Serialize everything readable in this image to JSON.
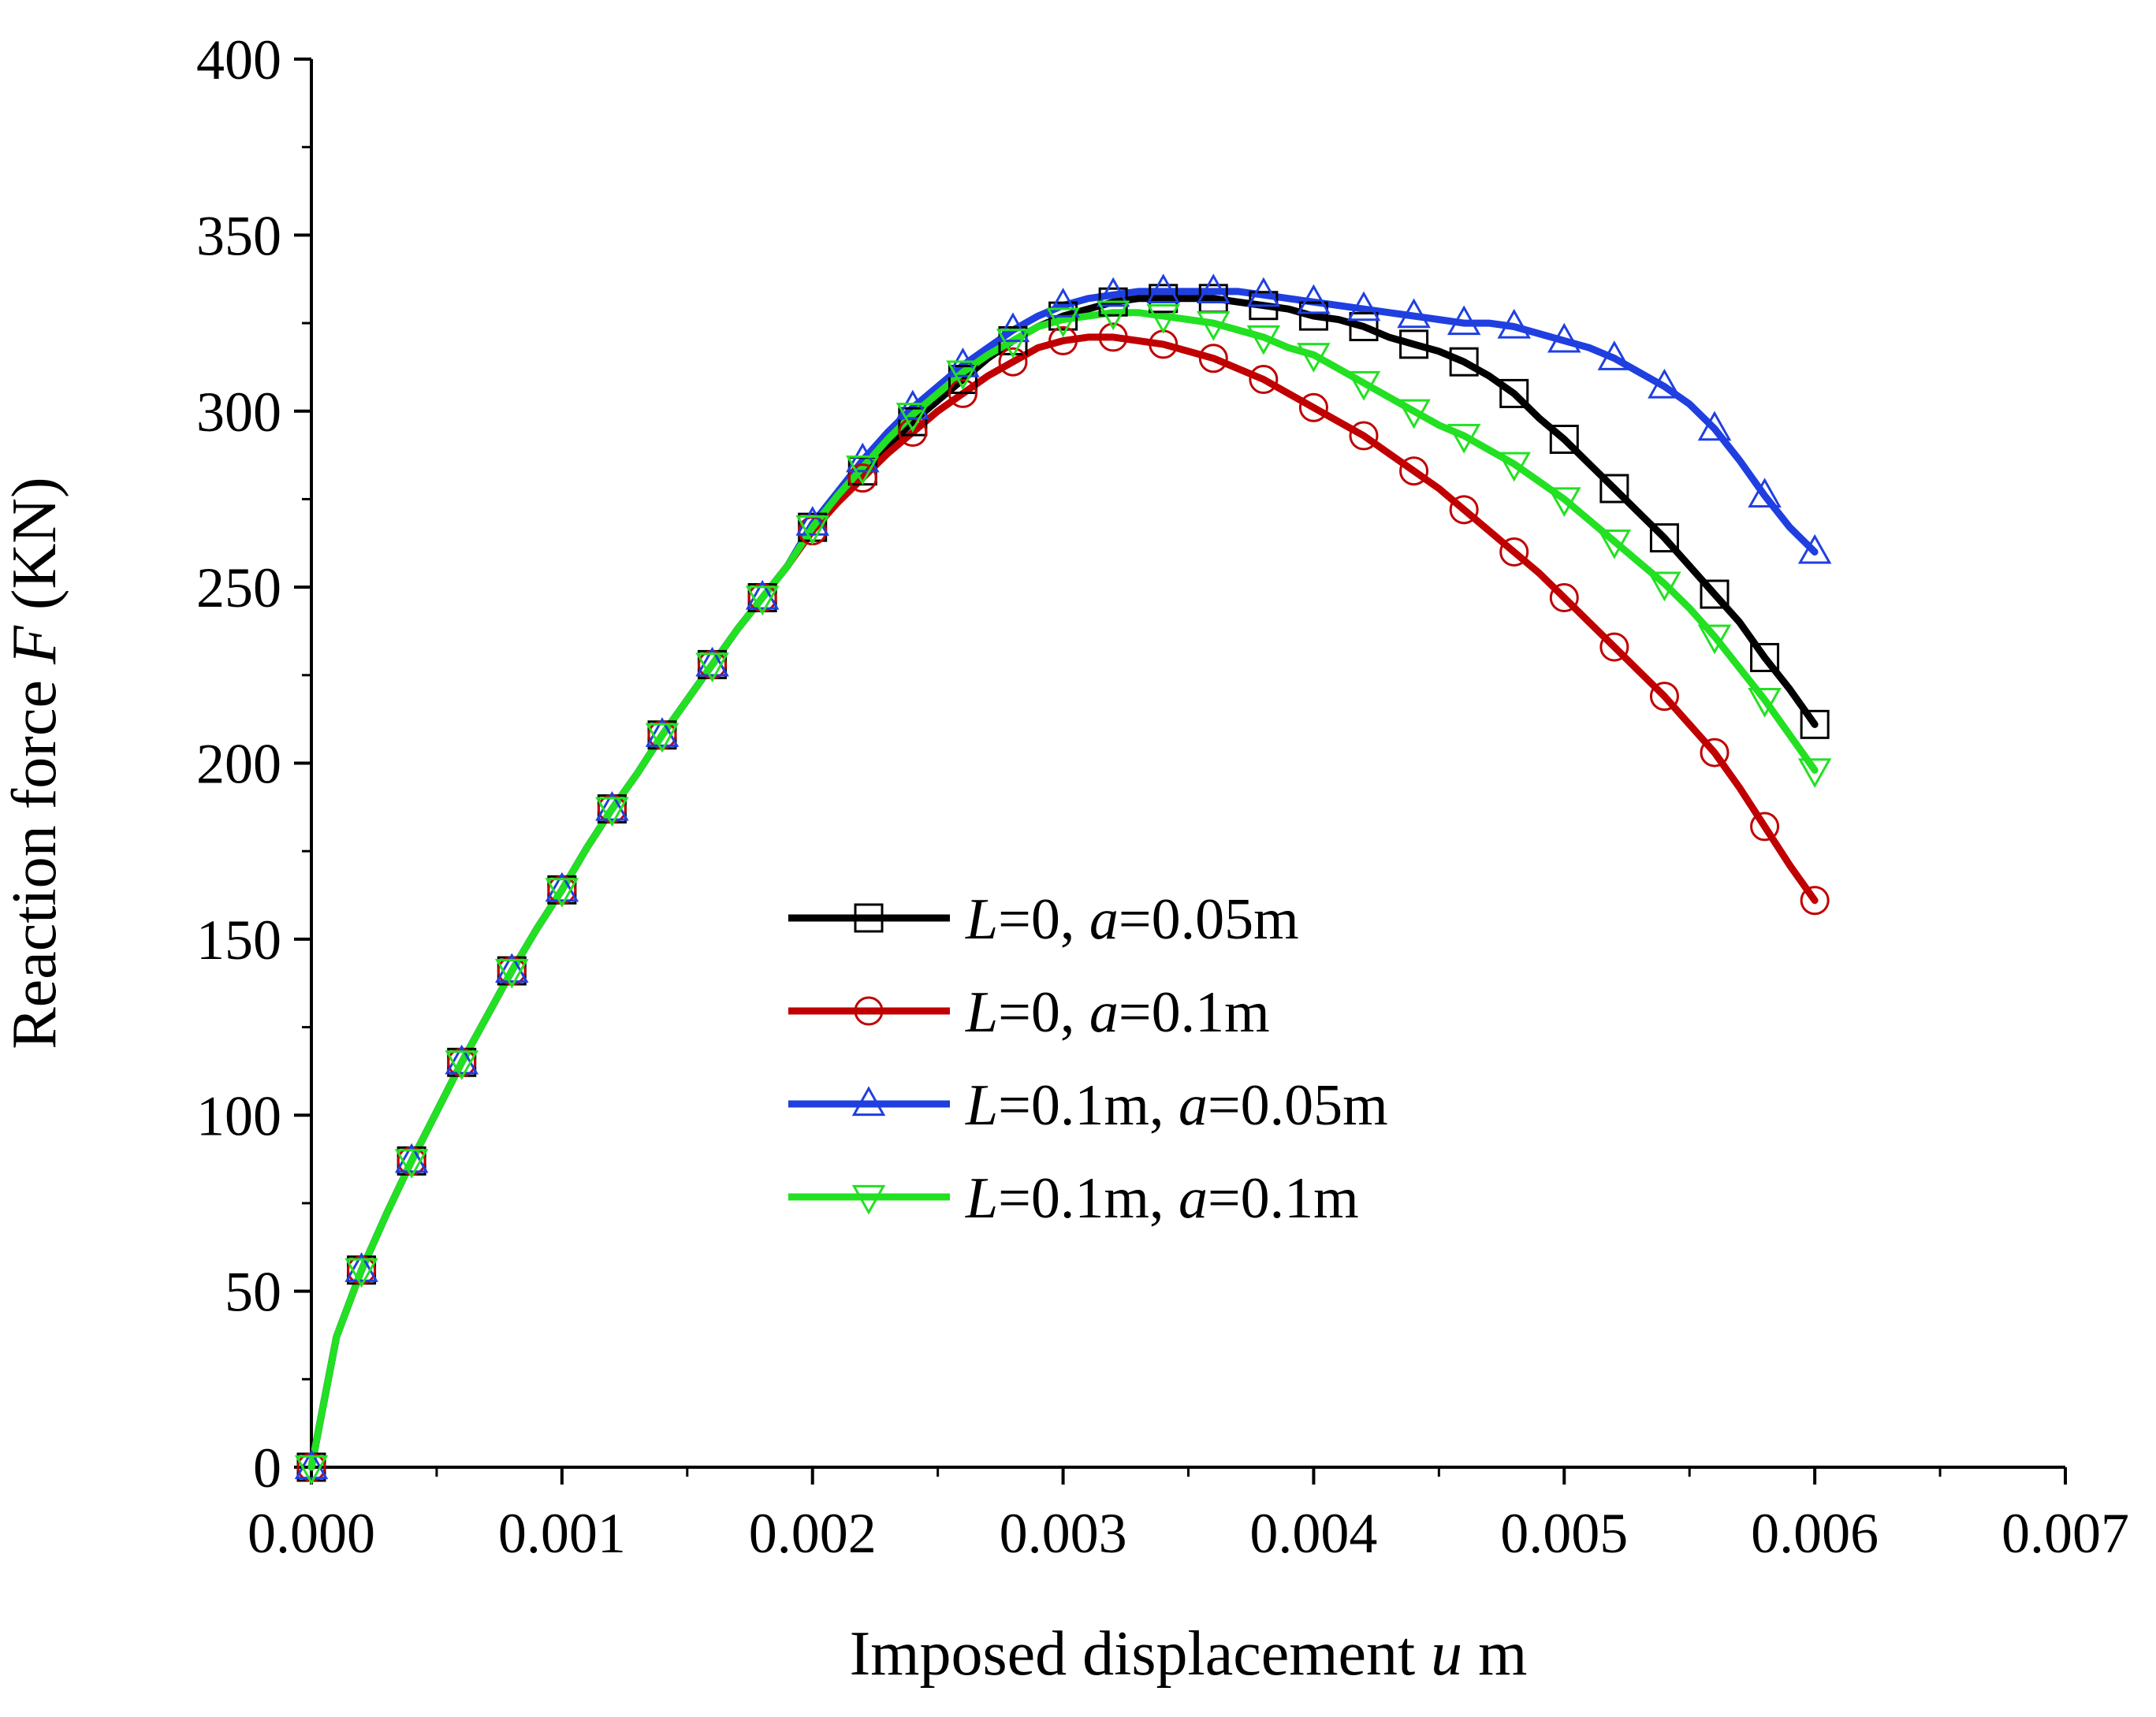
{
  "chart_data": {
    "type": "line",
    "title": "",
    "xlabel": {
      "prefix": "Imposed displacement ",
      "var": "u",
      "suffix": " m"
    },
    "ylabel": {
      "prefix": "Reaction force ",
      "var": "F",
      "suffix": " (KN)"
    },
    "xlim": [
      0,
      0.007
    ],
    "ylim": [
      0,
      400
    ],
    "x_ticks": [
      0,
      0.001,
      0.002,
      0.003,
      0.004,
      0.005,
      0.006,
      0.007
    ],
    "x_tick_labels": [
      "0.000",
      "0.001",
      "0.002",
      "0.003",
      "0.004",
      "0.005",
      "0.006",
      "0.007"
    ],
    "y_ticks": [
      0,
      50,
      100,
      150,
      200,
      250,
      300,
      350,
      400
    ],
    "y_tick_labels": [
      "0",
      "50",
      "100",
      "150",
      "200",
      "250",
      "300",
      "350",
      "400"
    ],
    "grid": false,
    "legend_position": "center",
    "series": [
      {
        "name": "L=0, a=0.05m",
        "legend": {
          "v1": "L",
          "t1": "=0, ",
          "v2": "a",
          "t2": "=0.05m"
        },
        "color": "#000000",
        "marker": "square",
        "x": [
          0,
          0.0001,
          0.0002,
          0.0003,
          0.0004,
          0.0005,
          0.0006,
          0.0007,
          0.0008,
          0.0009,
          0.001,
          0.0011,
          0.0012,
          0.0013,
          0.0014,
          0.0015,
          0.0016,
          0.0017,
          0.0018,
          0.0019,
          0.002,
          0.0021,
          0.0022,
          0.0023,
          0.0024,
          0.0025,
          0.0026,
          0.0027,
          0.0028,
          0.0029,
          0.003,
          0.0031,
          0.0032,
          0.0033,
          0.0034,
          0.0035,
          0.0036,
          0.0037,
          0.0038,
          0.0039,
          0.004,
          0.0041,
          0.0042,
          0.0043,
          0.0044,
          0.0045,
          0.0046,
          0.0047,
          0.0048,
          0.0049,
          0.005,
          0.0051,
          0.0052,
          0.0053,
          0.0054,
          0.0055,
          0.0056,
          0.0057,
          0.0058,
          0.0059,
          0.006
        ],
        "y": [
          0,
          37,
          56,
          72,
          87,
          101,
          115,
          128,
          141,
          153,
          164,
          176,
          187,
          197,
          208,
          218,
          228,
          238,
          247,
          256,
          267,
          275,
          283,
          290,
          297,
          303,
          309,
          315,
          320,
          324,
          327,
          329,
          331,
          332,
          332,
          332,
          332,
          331,
          330,
          329,
          327,
          326,
          324,
          321,
          319,
          317,
          314,
          310,
          305,
          298,
          292,
          285,
          278,
          271,
          264,
          256,
          248,
          240,
          230,
          221,
          211
        ]
      },
      {
        "name": "L=0, a=0.1m",
        "legend": {
          "v1": "L",
          "t1": "=0, ",
          "v2": "a",
          "t2": "=0.1m"
        },
        "color": "#c00000",
        "marker": "circle",
        "x": [
          0,
          0.0001,
          0.0002,
          0.0003,
          0.0004,
          0.0005,
          0.0006,
          0.0007,
          0.0008,
          0.0009,
          0.001,
          0.0011,
          0.0012,
          0.0013,
          0.0014,
          0.0015,
          0.0016,
          0.0017,
          0.0018,
          0.0019,
          0.002,
          0.0021,
          0.0022,
          0.0023,
          0.0024,
          0.0025,
          0.0026,
          0.0027,
          0.0028,
          0.0029,
          0.003,
          0.0031,
          0.0032,
          0.0033,
          0.0034,
          0.0035,
          0.0036,
          0.0037,
          0.0038,
          0.0039,
          0.004,
          0.0041,
          0.0042,
          0.0043,
          0.0044,
          0.0045,
          0.0046,
          0.0047,
          0.0048,
          0.0049,
          0.005,
          0.0051,
          0.0052,
          0.0053,
          0.0054,
          0.0055,
          0.0056,
          0.0057,
          0.0058,
          0.0059,
          0.006
        ],
        "y": [
          0,
          37,
          56,
          72,
          87,
          101,
          115,
          128,
          141,
          153,
          164,
          176,
          187,
          197,
          208,
          218,
          228,
          238,
          247,
          256,
          266,
          274,
          281,
          288,
          294,
          300,
          305,
          310,
          314,
          318,
          320,
          321,
          321,
          320,
          319,
          317,
          315,
          312,
          309,
          305,
          301,
          297,
          293,
          288,
          283,
          278,
          272,
          266,
          260,
          254,
          247,
          240,
          233,
          226,
          219,
          211,
          203,
          193,
          182,
          171,
          161
        ]
      },
      {
        "name": "L=0.1m, a=0.05m",
        "legend": {
          "v1": "L",
          "t1": "=0.1m, ",
          "v2": "a",
          "t2": "=0.05m"
        },
        "color": "#1f3fe0",
        "marker": "triangle-up",
        "x": [
          0,
          0.0001,
          0.0002,
          0.0003,
          0.0004,
          0.0005,
          0.0006,
          0.0007,
          0.0008,
          0.0009,
          0.001,
          0.0011,
          0.0012,
          0.0013,
          0.0014,
          0.0015,
          0.0016,
          0.0017,
          0.0018,
          0.0019,
          0.002,
          0.0021,
          0.0022,
          0.0023,
          0.0024,
          0.0025,
          0.0026,
          0.0027,
          0.0028,
          0.0029,
          0.003,
          0.0031,
          0.0032,
          0.0033,
          0.0034,
          0.0035,
          0.0036,
          0.0037,
          0.0038,
          0.0039,
          0.004,
          0.0041,
          0.0042,
          0.0043,
          0.0044,
          0.0045,
          0.0046,
          0.0047,
          0.0048,
          0.0049,
          0.005,
          0.0051,
          0.0052,
          0.0053,
          0.0054,
          0.0055,
          0.0056,
          0.0057,
          0.0058,
          0.0059,
          0.006
        ],
        "y": [
          0,
          37,
          56,
          72,
          87,
          101,
          115,
          128,
          141,
          153,
          164,
          176,
          187,
          197,
          208,
          218,
          228,
          238,
          247,
          256,
          268,
          277,
          286,
          294,
          301,
          307,
          313,
          318,
          323,
          327,
          330,
          332,
          333,
          334,
          334,
          334,
          334,
          334,
          333,
          332,
          331,
          330,
          329,
          328,
          327,
          326,
          325,
          325,
          324,
          322,
          320,
          318,
          315,
          311,
          307,
          302,
          295,
          286,
          276,
          267,
          260
        ]
      },
      {
        "name": "L=0.1m, a=0.1m",
        "legend": {
          "v1": "L",
          "t1": "=0.1m, ",
          "v2": "a",
          "t2": "=0.1m"
        },
        "color": "#22e022",
        "marker": "triangle-down",
        "x": [
          0,
          0.0001,
          0.0002,
          0.0003,
          0.0004,
          0.0005,
          0.0006,
          0.0007,
          0.0008,
          0.0009,
          0.001,
          0.0011,
          0.0012,
          0.0013,
          0.0014,
          0.0015,
          0.0016,
          0.0017,
          0.0018,
          0.0019,
          0.002,
          0.0021,
          0.0022,
          0.0023,
          0.0024,
          0.0025,
          0.0026,
          0.0027,
          0.0028,
          0.0029,
          0.003,
          0.0031,
          0.0032,
          0.0033,
          0.0034,
          0.0035,
          0.0036,
          0.0037,
          0.0038,
          0.0039,
          0.004,
          0.0041,
          0.0042,
          0.0043,
          0.0044,
          0.0045,
          0.0046,
          0.0047,
          0.0048,
          0.0049,
          0.005,
          0.0051,
          0.0052,
          0.0053,
          0.0054,
          0.0055,
          0.0056,
          0.0057,
          0.0058,
          0.0059,
          0.006
        ],
        "y": [
          0,
          37,
          56,
          72,
          87,
          101,
          115,
          128,
          141,
          153,
          164,
          176,
          187,
          197,
          208,
          218,
          228,
          238,
          247,
          256,
          267,
          276,
          284,
          292,
          299,
          305,
          311,
          316,
          320,
          324,
          326,
          327,
          328,
          328,
          327,
          326,
          325,
          323,
          321,
          318,
          316,
          312,
          308,
          304,
          300,
          296,
          293,
          289,
          285,
          280,
          275,
          269,
          263,
          257,
          251,
          244,
          236,
          227,
          218,
          208,
          198
        ]
      }
    ]
  }
}
